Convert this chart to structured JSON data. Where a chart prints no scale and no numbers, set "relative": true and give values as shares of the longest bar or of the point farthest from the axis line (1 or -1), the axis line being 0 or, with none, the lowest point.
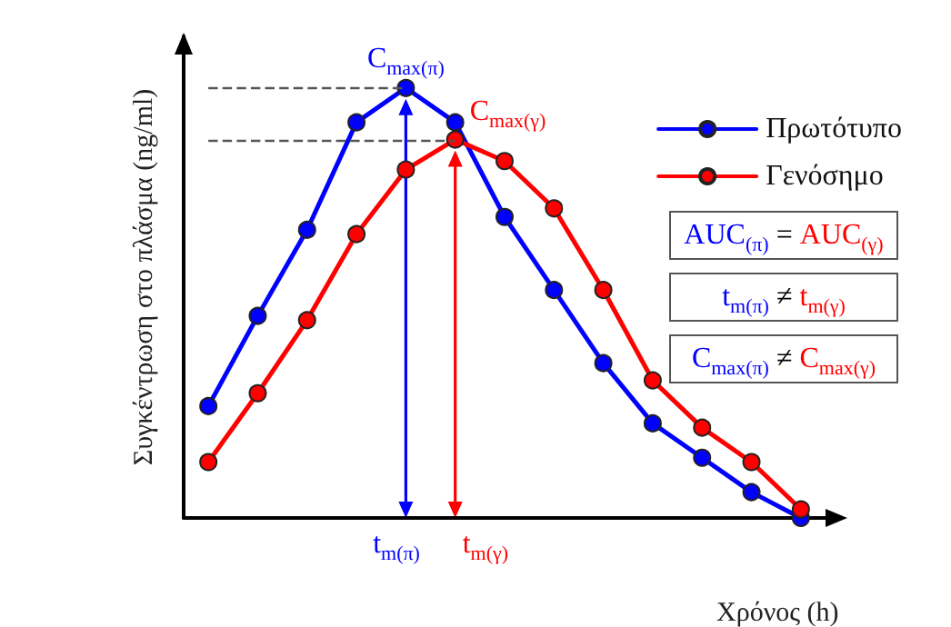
{
  "chart_data": {
    "type": "line",
    "relative": true,
    "xlabel": "Χρόνος (h)",
    "ylabel": "Συγκέντρωση στο πλάσμα (ng/ml)",
    "legend": "top right",
    "grid": false,
    "marker": "circle",
    "line_style": "solid",
    "categories": [
      null,
      null,
      null,
      null,
      null,
      null,
      null,
      null,
      null,
      null,
      null,
      null,
      null
    ],
    "series": [
      {
        "name": "Πρωτότυπο",
        "color": "#0000ff",
        "values": [
          0.26,
          0.47,
          0.67,
          0.92,
          1,
          0.92,
          0.7,
          0.53,
          0.36,
          0.22,
          0.14,
          0.06,
          0
        ]
      },
      {
        "name": "Γενόσημο",
        "color": "#ff0000",
        "values": [
          0.13,
          0.29,
          0.46,
          0.66,
          0.81,
          0.88,
          0.83,
          0.72,
          0.53,
          0.32,
          0.21,
          0.13,
          0.02
        ]
      }
    ],
    "ref_lines": [
      {
        "axis": "y",
        "value": 1,
        "color": "#555555",
        "line_style": "dashed"
      },
      {
        "axis": "y",
        "value": 0.88,
        "color": "#555555",
        "line_style": "dashed"
      }
    ],
    "annotations": [
      "C$_{max(π)}$",
      "C$_{max(γ)}$",
      "t$_{m(π)}$",
      "t$_{m(γ)}$",
      "AUC$_{(π)}$ = AUC$_{(γ)}$",
      "t$_{m(π)}$ ≠ t$_{m(γ)}$",
      "C$_{max(π)}$ ≠ C$_{max(γ)}$"
    ]
  }
}
